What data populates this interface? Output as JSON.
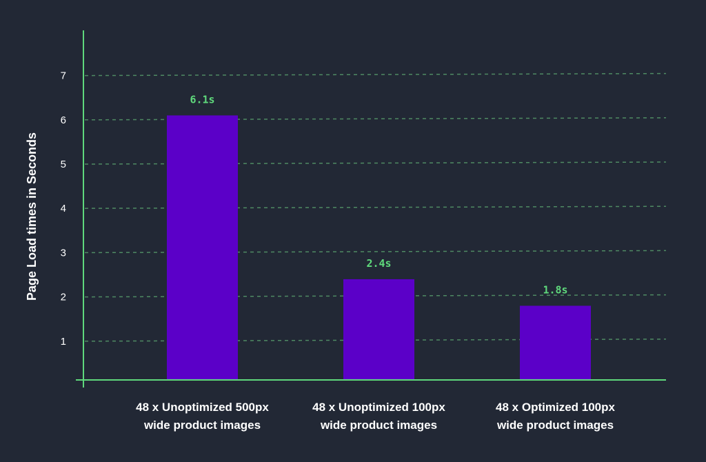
{
  "chart_data": {
    "type": "bar",
    "title": "",
    "xlabel": "",
    "ylabel": "Page Load times in Seconds",
    "ylim": [
      0,
      7
    ],
    "yticks": [
      1,
      2,
      3,
      4,
      5,
      6,
      7
    ],
    "grid": true,
    "categories": [
      [
        "48 x Unoptimized 500px",
        "wide product images"
      ],
      [
        "48 x Unoptimized 100px",
        "wide product images"
      ],
      [
        "48 x Optimized 100px",
        "wide product images"
      ]
    ],
    "values": [
      6.1,
      2.4,
      1.8
    ],
    "data_labels": [
      "6.1s",
      "2.4s",
      "1.8s"
    ],
    "colors": {
      "bar": "#5b00c8",
      "axis": "#5fd97c",
      "grid": "#4f8a63",
      "label": "#5fd97c",
      "background": "#222835"
    }
  }
}
